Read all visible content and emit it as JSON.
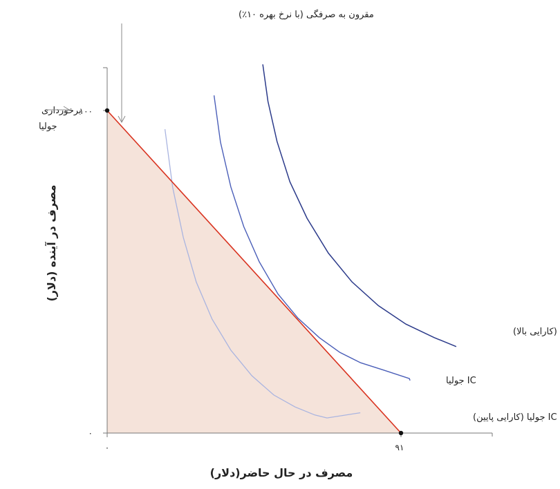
{
  "chart_data": {
    "type": "line",
    "xlabel": "مصرف در حال حاضر(دلار)",
    "ylabel": "مصرف در آینده (دلار)",
    "x_ticks": [
      {
        "value": 0,
        "label": "۰"
      },
      {
        "value": 91,
        "label": "۹۱"
      }
    ],
    "y_ticks": [
      {
        "value": 0,
        "label": "۰"
      },
      {
        "value": 100,
        "label": "۱۰۰"
      }
    ],
    "xlim": [
      0,
      119
    ],
    "ylim": [
      0,
      113
    ],
    "budget_line": {
      "label": "مقرون به صرفگی (با نرخ بهره ۱۰٪)",
      "color": "#d9321f",
      "fill": "#f5e3da",
      "points": [
        [
          0,
          100
        ],
        [
          91,
          0
        ]
      ]
    },
    "endowment": {
      "label_line1": "برخورداری",
      "label_line2": "جولیا",
      "x": 0,
      "y": 100
    },
    "series": [
      {
        "name": "IC جولیا (کارایی پایین)",
        "color": "#a9b4e0",
        "points": [
          [
            17.9,
            94.2
          ],
          [
            20.3,
            76.1
          ],
          [
            23.6,
            60.6
          ],
          [
            27.6,
            46.8
          ],
          [
            32.5,
            35.3
          ],
          [
            38.3,
            25.7
          ],
          [
            44.8,
            17.8
          ],
          [
            51.6,
            11.8
          ],
          [
            58.2,
            8.1
          ],
          [
            64.3,
            5.6
          ],
          [
            68.1,
            4.7
          ],
          [
            78.4,
            6.3
          ]
        ]
      },
      {
        "name": "IC جولیا",
        "color": "#4a5eb8",
        "points": [
          [
            33.1,
            104.7
          ],
          [
            35.1,
            90.2
          ],
          [
            38.3,
            76.3
          ],
          [
            42.3,
            64.0
          ],
          [
            47.1,
            53.1
          ],
          [
            52.9,
            43.1
          ],
          [
            59.1,
            35.6
          ],
          [
            65.7,
            29.6
          ],
          [
            72.1,
            25.0
          ],
          [
            78.5,
            21.8
          ],
          [
            85.7,
            19.5
          ],
          [
            93.6,
            16.9
          ],
          [
            93.8,
            16.3
          ],
          [
            93.8,
            16.3
          ]
        ]
      },
      {
        "name": "IC جولیا (کارایی بالا)",
        "color": "#2b3a8a",
        "points": [
          [
            48.2,
            114.3
          ],
          [
            49.8,
            102.8
          ],
          [
            52.6,
            90.4
          ],
          [
            56.6,
            77.9
          ],
          [
            61.9,
            66.6
          ],
          [
            68.5,
            55.8
          ],
          [
            75.8,
            46.9
          ],
          [
            84.0,
            39.5
          ],
          [
            92.5,
            33.8
          ],
          [
            101.3,
            29.6
          ],
          [
            108.1,
            26.8
          ]
        ]
      }
    ]
  }
}
